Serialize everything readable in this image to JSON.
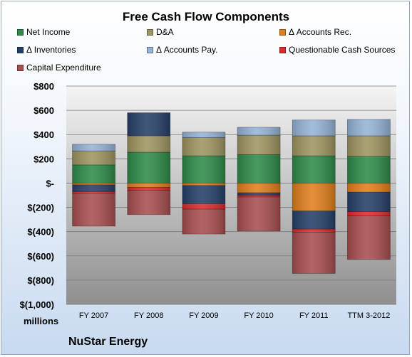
{
  "chart_data": {
    "type": "bar",
    "stacked": true,
    "title": "Free Cash Flow Components",
    "ylabel": "",
    "unit_label": "millions",
    "footer": "NuStar Energy",
    "categories": [
      "FY 2007",
      "FY 2008",
      "FY 2009",
      "FY 2010",
      "FY 2011",
      "TTM 3-2012"
    ],
    "ylim": [
      -1000,
      800
    ],
    "yticks": [
      800,
      600,
      400,
      200,
      0,
      -200,
      -400,
      -600,
      -800,
      -1000
    ],
    "ytick_labels": [
      "$800",
      "$600",
      "$400",
      "$200",
      "$-",
      "$(200)",
      "$(400)",
      "$(600)",
      "$(800)",
      "$(1,000)"
    ],
    "grid": true,
    "legend_position": "top",
    "series": [
      {
        "name": "Net Income",
        "color": "#2e8b4a",
        "values": [
          150,
          255,
          225,
          235,
          225,
          220
        ]
      },
      {
        "name": "D&A",
        "color": "#9e9560",
        "values": [
          115,
          135,
          150,
          160,
          165,
          170
        ]
      },
      {
        "name": "Δ Accounts Rec.",
        "color": "#e07f1c",
        "values": [
          -15,
          -35,
          -20,
          -80,
          -230,
          -75
        ]
      },
      {
        "name": "Δ Inventories",
        "color": "#253f68",
        "values": [
          -55,
          190,
          -150,
          -20,
          -150,
          -160
        ]
      },
      {
        "name": "Δ Accounts Pay.",
        "color": "#95b3d7",
        "values": [
          55,
          0,
          45,
          65,
          130,
          135
        ]
      },
      {
        "name": "Questionable Cash Sources",
        "color": "#dd2a2a",
        "values": [
          -15,
          -25,
          -45,
          -15,
          -25,
          -35
        ]
      },
      {
        "name": "Capital Expenditure",
        "color": "#a84e4e",
        "values": [
          -270,
          -200,
          -205,
          -280,
          -340,
          -360
        ]
      }
    ]
  }
}
